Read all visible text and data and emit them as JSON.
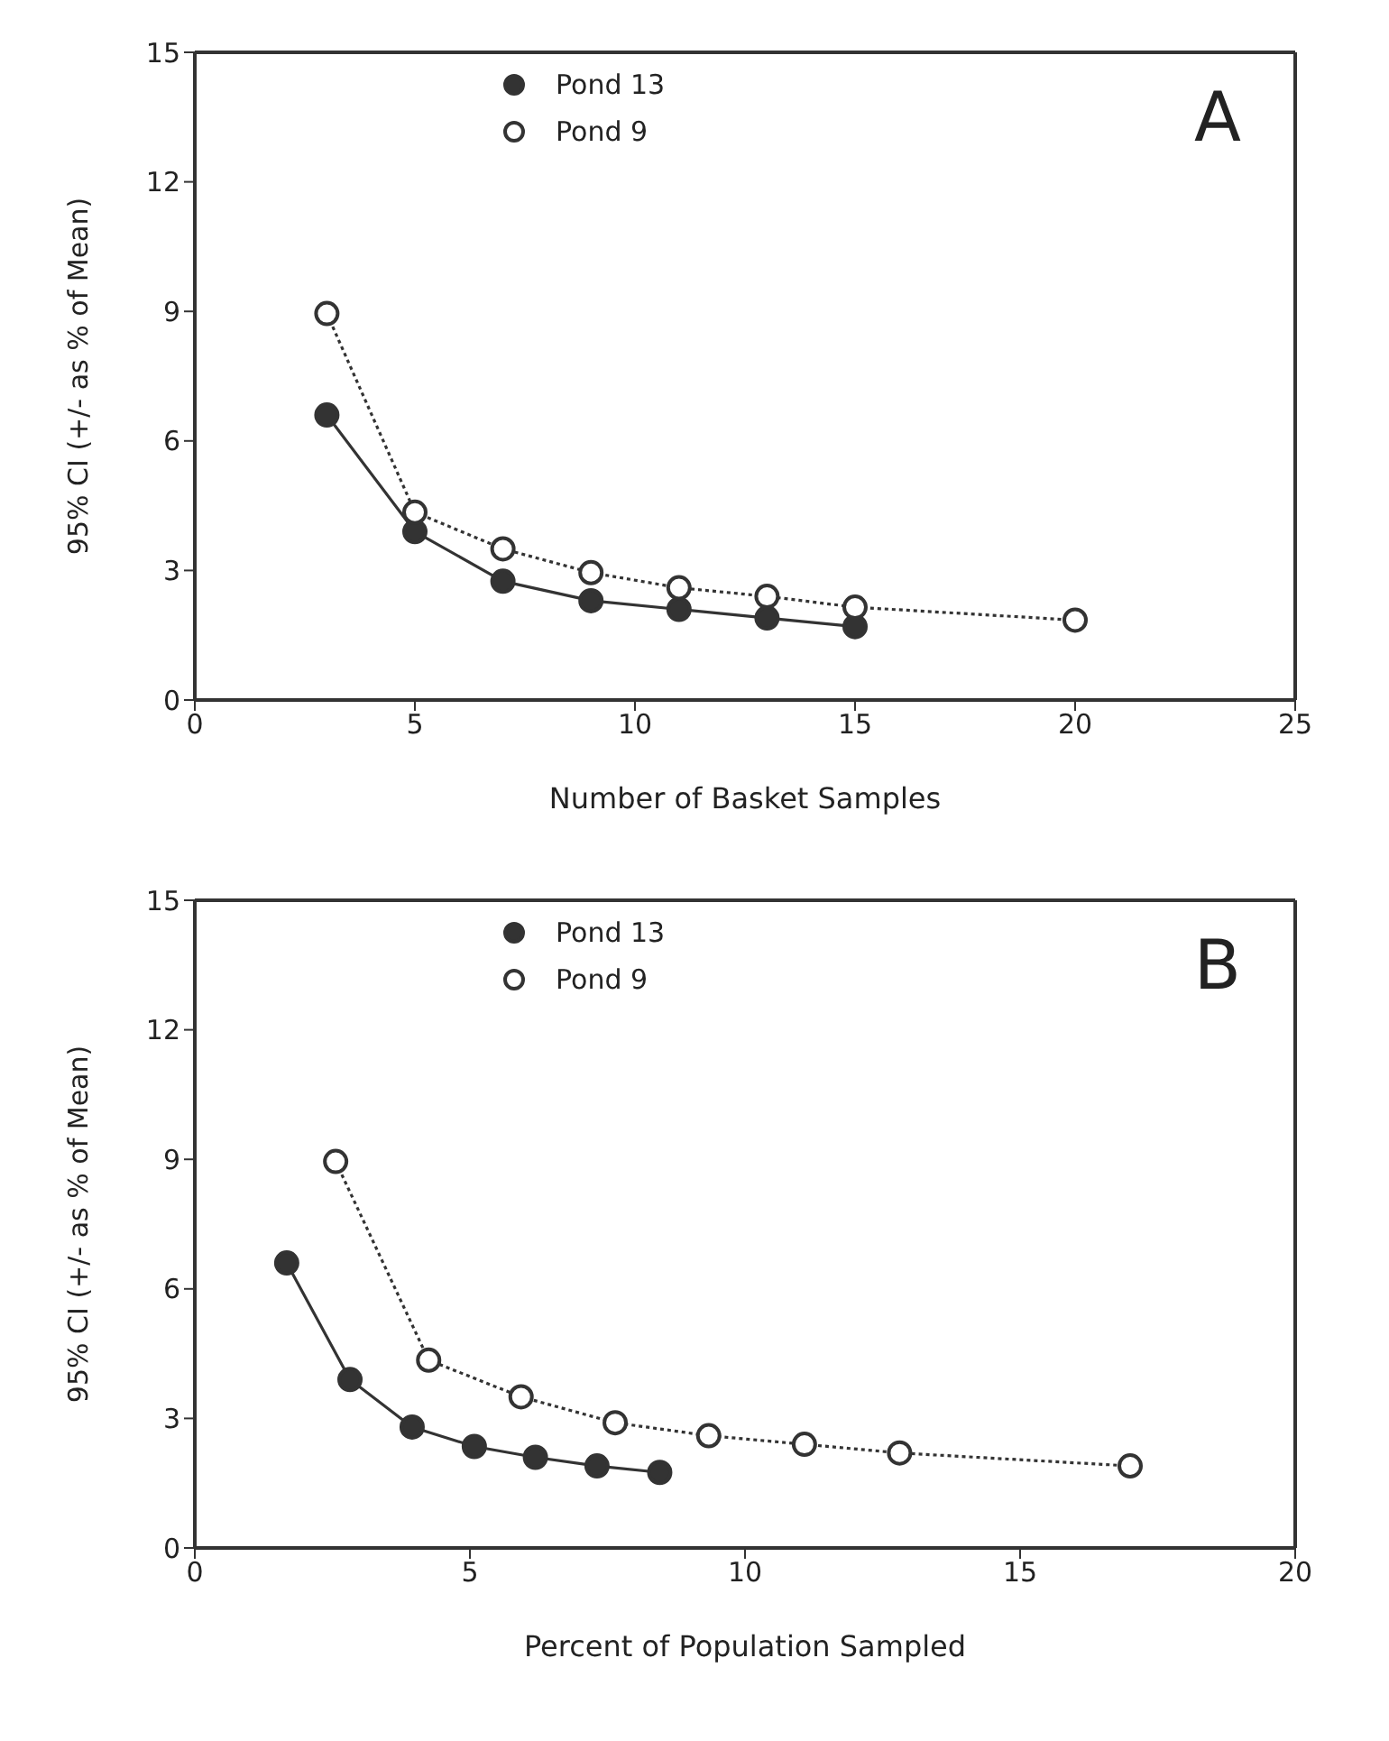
{
  "chart_data": [
    {
      "type": "line",
      "xlabel": "Number of Basket Samples",
      "ylabel": "95% CI (+/- as % of Mean)",
      "annotations": [
        "A"
      ],
      "xlim": [
        0,
        25
      ],
      "xticks": [
        0,
        5,
        10,
        15,
        20,
        25
      ],
      "ylim": [
        0,
        15
      ],
      "yticks": [
        0,
        3,
        6,
        9,
        12,
        15
      ],
      "legend": "top",
      "marker": "circle",
      "series": [
        {
          "name": "Pond 13",
          "color": "#333333",
          "line_style": "solid",
          "x": [
            3,
            5,
            7,
            9,
            11,
            13,
            15
          ],
          "values": [
            6.6,
            3.9,
            2.75,
            2.3,
            2.1,
            1.9,
            1.7
          ]
        },
        {
          "name": "Pond 9",
          "color": "#333333",
          "line_style": "dotted",
          "x": [
            3,
            5,
            7,
            9,
            11,
            13,
            15,
            20
          ],
          "values": [
            8.95,
            4.35,
            3.5,
            2.95,
            2.6,
            2.4,
            2.15,
            1.85
          ]
        }
      ]
    },
    {
      "type": "line",
      "xlabel": "Percent of Population Sampled",
      "ylabel": "95% CI (+/- as % of Mean)",
      "annotations": [
        "B"
      ],
      "xlim": [
        0,
        20
      ],
      "xticks": [
        0,
        5,
        10,
        15,
        20
      ],
      "ylim": [
        0,
        15
      ],
      "yticks": [
        0,
        3,
        6,
        9,
        12,
        15
      ],
      "legend": "top",
      "marker": "circle",
      "series": [
        {
          "name": "Pond 13",
          "color": "#333333",
          "line_style": "solid",
          "x": [
            1.67,
            2.82,
            3.95,
            5.08,
            6.19,
            7.31,
            8.45
          ],
          "values": [
            6.6,
            3.9,
            2.8,
            2.35,
            2.1,
            1.9,
            1.75
          ]
        },
        {
          "name": "Pond 9",
          "color": "#333333",
          "line_style": "dotted",
          "x": [
            2.56,
            4.25,
            5.93,
            7.64,
            9.34,
            11.08,
            12.81,
            17.0
          ],
          "values": [
            8.95,
            4.35,
            3.5,
            2.9,
            2.6,
            2.4,
            2.2,
            1.9
          ]
        }
      ]
    }
  ]
}
